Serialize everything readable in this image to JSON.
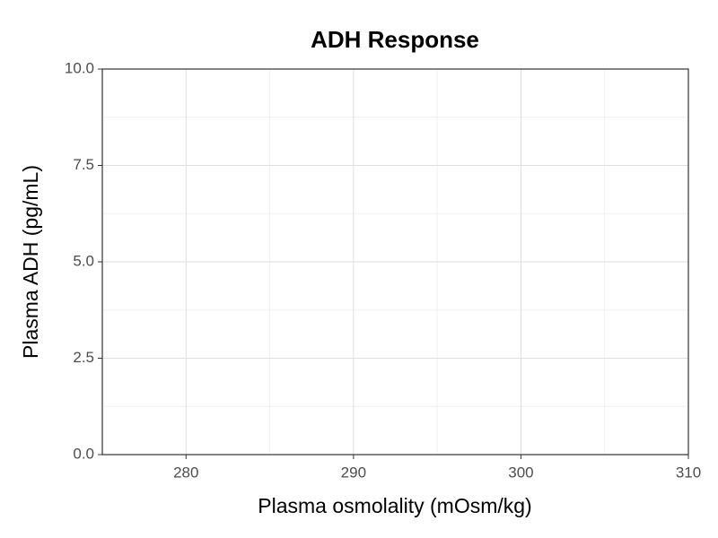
{
  "chart_data": {
    "type": "line",
    "title": "ADH Response",
    "x_label": "Plasma osmolality (mOsm/kg)",
    "y_label": "Plasma ADH (pg/mL)",
    "series": [],
    "xlim": [
      275,
      310
    ],
    "xticks": [
      280,
      290,
      300,
      310
    ],
    "ylim": [
      0,
      10
    ],
    "yticks": [
      {
        "value": 0,
        "label": "0.0"
      },
      2.5,
      {
        "value": 5,
        "label": "5.0"
      },
      7.5,
      {
        "value": 10,
        "label": "10.0"
      }
    ],
    "grid": true
  }
}
